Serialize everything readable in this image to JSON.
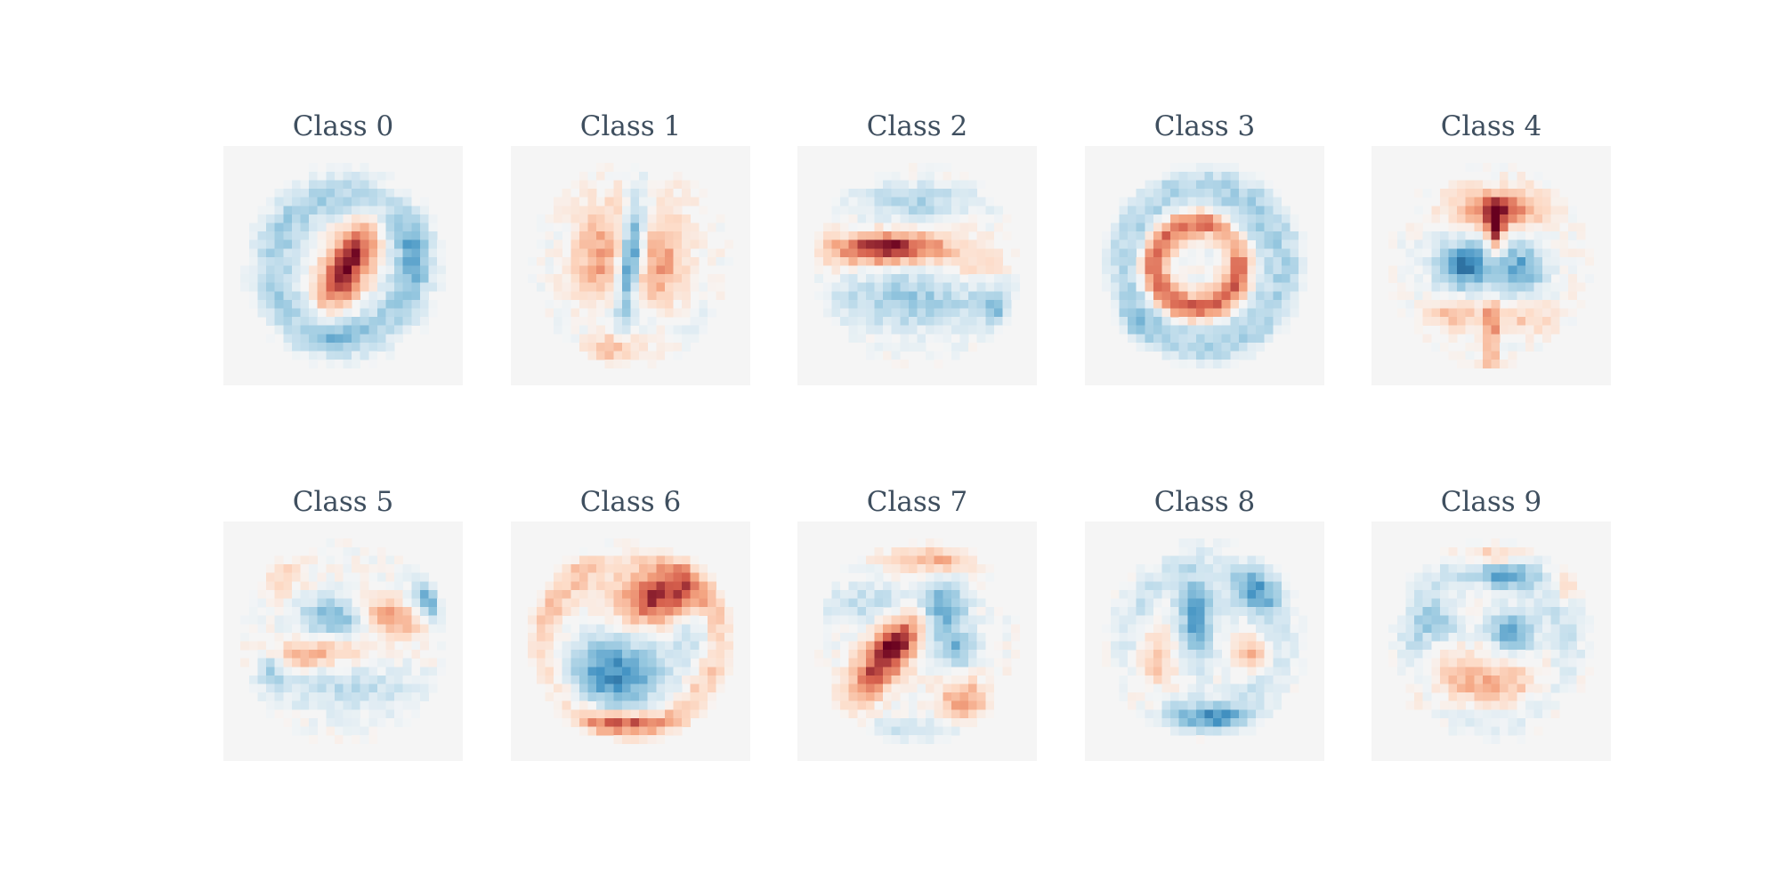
{
  "chart_data": {
    "type": "heatmap",
    "colormap": "RdBu_r",
    "background_color": "#f5f5f5",
    "title_color": "#3f4f5f",
    "grid": false,
    "axes_visible": false,
    "image_size": [
      28,
      28
    ],
    "rows": 2,
    "cols": 5,
    "value_range": [
      -1,
      1
    ],
    "panels": [
      {
        "title": "Class 0",
        "components": [
          {
            "sign": 1,
            "cx": 14.5,
            "cy": 14,
            "sx": 1.8,
            "sy": 4.2,
            "rot": 0.45,
            "amp": 1.0
          },
          {
            "sign": -1,
            "cx": 14,
            "cy": 14,
            "r": 8.0,
            "w": 1.9,
            "amp": 0.42
          },
          {
            "sign": -1,
            "cx": 22.5,
            "cy": 12.5,
            "sx": 1.2,
            "sy": 2.6,
            "rot": 0,
            "amp": 0.3
          },
          {
            "sign": -1,
            "cx": 12,
            "cy": 22.5,
            "sx": 2.5,
            "sy": 1.2,
            "rot": 0,
            "amp": 0.3
          }
        ]
      },
      {
        "title": "Class 1",
        "components": [
          {
            "sign": -1,
            "cx": 14,
            "cy": 13,
            "sx": 0.9,
            "sy": 4.5,
            "rot": 0.12,
            "amp": 1.0
          },
          {
            "sign": 1,
            "cx": 10.5,
            "cy": 13,
            "sx": 2.2,
            "sy": 4.5,
            "rot": 0.15,
            "amp": 0.5
          },
          {
            "sign": 1,
            "cx": 17.5,
            "cy": 14,
            "sx": 2.2,
            "sy": 4.5,
            "rot": 0.15,
            "amp": 0.5
          },
          {
            "sign": 1,
            "cx": 12,
            "cy": 23.5,
            "sx": 2.0,
            "sy": 1.4,
            "rot": 0,
            "amp": 0.4
          },
          {
            "sign": -1,
            "cx": 14,
            "cy": 20.5,
            "sx": 6.0,
            "sy": 1.5,
            "rot": 0,
            "amp": 0.2
          }
        ]
      },
      {
        "title": "Class 2",
        "components": [
          {
            "sign": 1,
            "cx": 10.5,
            "cy": 12,
            "sx": 5.0,
            "sy": 1.3,
            "rot": -0.04,
            "amp": 1.0
          },
          {
            "sign": -1,
            "cx": 13.5,
            "cy": 6.5,
            "sx": 5.0,
            "sy": 1.5,
            "rot": 0,
            "amp": 0.4
          },
          {
            "sign": -1,
            "cx": 13,
            "cy": 18,
            "sx": 6.5,
            "sy": 2.5,
            "rot": 0,
            "amp": 0.45
          },
          {
            "sign": -1,
            "cx": 23.5,
            "cy": 19,
            "sx": 1.6,
            "sy": 1.8,
            "rot": 0,
            "amp": 0.45
          },
          {
            "sign": 1,
            "cx": 21,
            "cy": 14,
            "sx": 2.5,
            "sy": 1.3,
            "rot": 0,
            "amp": 0.3
          }
        ]
      },
      {
        "title": "Class 3",
        "components": [
          {
            "sign": 1,
            "cx": 13,
            "cy": 14,
            "r": 5.0,
            "w": 1.2,
            "amp": 0.8
          },
          {
            "sign": -1,
            "cx": 14,
            "cy": 14,
            "r": 9.0,
            "w": 2.0,
            "amp": 0.38
          },
          {
            "sign": -1,
            "cx": 17,
            "cy": 11,
            "sx": 2.0,
            "sy": 2.0,
            "rot": 0,
            "amp": 0.35
          },
          {
            "sign": -1,
            "cx": 5.5,
            "cy": 21,
            "sx": 1.5,
            "sy": 1.5,
            "rot": 0,
            "amp": 0.3
          }
        ]
      },
      {
        "title": "Class 4",
        "components": [
          {
            "sign": 1,
            "cx": 15,
            "cy": 7.5,
            "sx": 3.5,
            "sy": 1.6,
            "rot": 0,
            "amp": 0.8
          },
          {
            "sign": 1,
            "cx": 14.5,
            "cy": 10,
            "sx": 0.7,
            "sy": 2.0,
            "rot": 0,
            "amp": 0.8
          },
          {
            "sign": 1,
            "cx": 14,
            "cy": 22,
            "sx": 0.6,
            "sy": 3.0,
            "rot": 0,
            "amp": 0.6
          },
          {
            "sign": 1,
            "cx": 10,
            "cy": 19.5,
            "sx": 2.5,
            "sy": 1.3,
            "rot": 0,
            "amp": 0.45
          },
          {
            "sign": 1,
            "cx": 18,
            "cy": 20,
            "sx": 2.5,
            "sy": 1.3,
            "rot": 0,
            "amp": 0.35
          },
          {
            "sign": -1,
            "cx": 11,
            "cy": 14,
            "sx": 2.5,
            "sy": 2.3,
            "rot": 0,
            "amp": 0.8
          },
          {
            "sign": -1,
            "cx": 17.5,
            "cy": 14.5,
            "sx": 2.0,
            "sy": 2.3,
            "rot": 0,
            "amp": 0.65
          },
          {
            "sign": 1,
            "cx": 14,
            "cy": 26,
            "sx": 2.5,
            "sy": 0.8,
            "rot": 0,
            "amp": 0.3
          }
        ]
      },
      {
        "title": "Class 5",
        "components": [
          {
            "sign": -1,
            "cx": 24.5,
            "cy": 8.5,
            "sx": 1.2,
            "sy": 2.0,
            "rot": 0,
            "amp": 0.95
          },
          {
            "sign": -1,
            "cx": 13,
            "cy": 11,
            "sx": 3.0,
            "sy": 1.7,
            "rot": 0,
            "amp": 0.6
          },
          {
            "sign": 1,
            "cx": 19,
            "cy": 11,
            "sx": 3.0,
            "sy": 1.3,
            "rot": 0.35,
            "amp": 0.6
          },
          {
            "sign": 1,
            "cx": 10,
            "cy": 15.5,
            "sx": 4.5,
            "sy": 1.2,
            "rot": -0.1,
            "amp": 0.5
          },
          {
            "sign": -1,
            "cx": 5.5,
            "cy": 17,
            "sx": 1.3,
            "sy": 1.3,
            "rot": 0,
            "amp": 0.5
          },
          {
            "sign": -1,
            "cx": 14,
            "cy": 19.5,
            "sx": 7.0,
            "sy": 2.0,
            "rot": 0,
            "amp": 0.3
          },
          {
            "sign": 1,
            "cx": 7,
            "cy": 6.5,
            "sx": 1.8,
            "sy": 1.8,
            "rot": 0,
            "amp": 0.25
          }
        ]
      },
      {
        "title": "Class 6",
        "components": [
          {
            "sign": 1,
            "cx": 17,
            "cy": 9,
            "sx": 3.5,
            "sy": 2.2,
            "rot": -0.2,
            "amp": 0.9
          },
          {
            "sign": -1,
            "cx": 12,
            "cy": 18,
            "sx": 4.5,
            "sy": 3.5,
            "rot": 0,
            "amp": 0.75
          },
          {
            "sign": 1,
            "cx": 13,
            "cy": 23.5,
            "sx": 4.0,
            "sy": 0.8,
            "rot": 0,
            "amp": 0.6
          },
          {
            "sign": 1,
            "cx": 14,
            "cy": 14,
            "r": 10.0,
            "w": 1.6,
            "amp": 0.35
          },
          {
            "sign": -1,
            "cx": 14,
            "cy": 3.5,
            "sx": 5.0,
            "sy": 1.2,
            "rot": 0,
            "amp": 0.3
          },
          {
            "sign": -1,
            "cx": 21.5,
            "cy": 13,
            "sx": 1.5,
            "sy": 2.5,
            "rot": 0,
            "amp": 0.35
          }
        ]
      },
      {
        "title": "Class 7",
        "components": [
          {
            "sign": 1,
            "cx": 11,
            "cy": 15,
            "sx": 1.7,
            "sy": 5.0,
            "rot": 0.65,
            "amp": 1.0
          },
          {
            "sign": -1,
            "cx": 16.5,
            "cy": 10,
            "sx": 2.2,
            "sy": 2.2,
            "rot": 0,
            "amp": 0.85
          },
          {
            "sign": -1,
            "cx": 18.5,
            "cy": 15,
            "sx": 1.8,
            "sy": 1.5,
            "rot": 0,
            "amp": 0.55
          },
          {
            "sign": 1,
            "cx": 19.5,
            "cy": 21,
            "sx": 2.0,
            "sy": 1.8,
            "rot": 0,
            "amp": 0.55
          },
          {
            "sign": -1,
            "cx": 8,
            "cy": 9.5,
            "sx": 4.0,
            "sy": 1.8,
            "rot": 0,
            "amp": 0.3
          },
          {
            "sign": 1,
            "cx": 16,
            "cy": 4.5,
            "sx": 3.5,
            "sy": 1.0,
            "rot": 0,
            "amp": 0.45
          },
          {
            "sign": -1,
            "cx": 14,
            "cy": 24.5,
            "sx": 5.0,
            "sy": 1.0,
            "rot": 0,
            "amp": 0.3
          }
        ]
      },
      {
        "title": "Class 8",
        "components": [
          {
            "sign": -1,
            "cx": 13,
            "cy": 11,
            "sx": 1.5,
            "sy": 4.0,
            "rot": 0,
            "amp": 0.7
          },
          {
            "sign": -1,
            "cx": 15,
            "cy": 23,
            "sx": 3.5,
            "sy": 0.9,
            "rot": 0,
            "amp": 0.55
          },
          {
            "sign": -1,
            "cx": 20,
            "cy": 8,
            "sx": 2.5,
            "sy": 2.0,
            "rot": 0,
            "amp": 0.45
          },
          {
            "sign": 1,
            "cx": 8,
            "cy": 17,
            "sx": 2.0,
            "sy": 3.0,
            "rot": 0,
            "amp": 0.4
          },
          {
            "sign": 1,
            "cx": 20,
            "cy": 15.5,
            "sx": 1.5,
            "sy": 1.3,
            "rot": 0,
            "amp": 0.45
          },
          {
            "sign": 1,
            "cx": 14,
            "cy": 6,
            "sx": 2.0,
            "sy": 1.3,
            "rot": 0,
            "amp": 0.3
          },
          {
            "sign": -1,
            "cx": 14,
            "cy": 14,
            "r": 8.5,
            "w": 1.5,
            "amp": 0.25
          }
        ]
      },
      {
        "title": "Class 9",
        "components": [
          {
            "sign": -1,
            "cx": 16.5,
            "cy": 13,
            "sx": 2.0,
            "sy": 2.0,
            "rot": 0,
            "amp": 0.65
          },
          {
            "sign": -1,
            "cx": 15.5,
            "cy": 6.5,
            "sx": 2.0,
            "sy": 1.0,
            "rot": 0,
            "amp": 0.6
          },
          {
            "sign": 1,
            "cx": 14,
            "cy": 4,
            "sx": 3.0,
            "sy": 0.8,
            "rot": 0,
            "amp": 0.45
          },
          {
            "sign": 1,
            "cx": 13,
            "cy": 19,
            "sx": 6.0,
            "sy": 2.5,
            "rot": 0,
            "amp": 0.45
          },
          {
            "sign": 1,
            "cx": 23,
            "cy": 7.5,
            "sx": 1.0,
            "sy": 1.3,
            "rot": 0,
            "amp": 0.4
          },
          {
            "sign": -1,
            "cx": 14,
            "cy": 14,
            "r": 9.0,
            "w": 1.5,
            "amp": 0.25
          },
          {
            "sign": -1,
            "cx": 8,
            "cy": 12,
            "sx": 2.0,
            "sy": 1.5,
            "rot": 0,
            "amp": 0.35
          }
        ]
      }
    ]
  }
}
